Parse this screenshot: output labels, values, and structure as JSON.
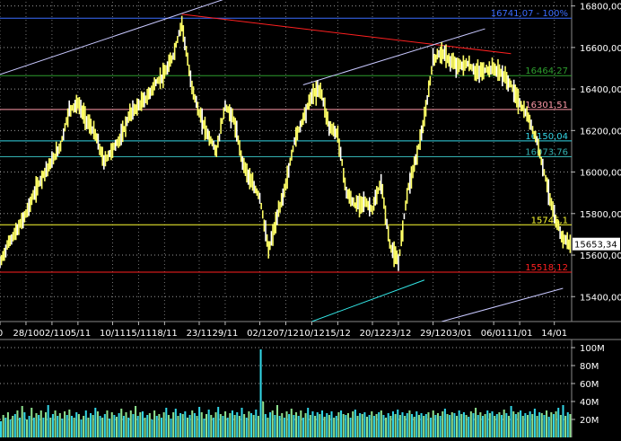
{
  "chart_data": [
    {
      "type": "candlestick",
      "ylim": [
        15280,
        16820
      ],
      "y_ticks": [
        {
          "value": 15400,
          "label": "15400,00"
        },
        {
          "value": 15600,
          "label": "15600,00"
        },
        {
          "value": 15800,
          "label": "15800,00"
        },
        {
          "value": 16000,
          "label": "16000,00"
        },
        {
          "value": 16200,
          "label": "16200,00"
        },
        {
          "value": 16400,
          "label": "16400,00"
        },
        {
          "value": 16600,
          "label": "16600,00"
        },
        {
          "value": 16800,
          "label": "16800,00"
        }
      ],
      "x_range": [
        0,
        66
      ],
      "x_ticks": [
        {
          "index": 0,
          "label": "0"
        },
        {
          "index": 3,
          "label": "28/10"
        },
        {
          "index": 6,
          "label": "02/11"
        },
        {
          "index": 9,
          "label": "05/11"
        },
        {
          "index": 13,
          "label": "10/11"
        },
        {
          "index": 16,
          "label": "15/11"
        },
        {
          "index": 19,
          "label": "18/11"
        },
        {
          "index": 23,
          "label": "23/11"
        },
        {
          "index": 26,
          "label": "29/11"
        },
        {
          "index": 30,
          "label": "02/12"
        },
        {
          "index": 33,
          "label": "07/12"
        },
        {
          "index": 36,
          "label": "10/12"
        },
        {
          "index": 39,
          "label": "15/12"
        },
        {
          "index": 43,
          "label": "20/12"
        },
        {
          "index": 46,
          "label": "23/12"
        },
        {
          "index": 50,
          "label": "29/12"
        },
        {
          "index": 53,
          "label": "03/01"
        },
        {
          "index": 57,
          "label": "06/01"
        },
        {
          "index": 60,
          "label": "11/01"
        },
        {
          "index": 64,
          "label": "14/01"
        }
      ],
      "levels": [
        {
          "value": 16741.07,
          "label": "16741,07 - 100%",
          "color": "#3a6cff"
        },
        {
          "value": 16464.27,
          "label": "16464,27",
          "color": "#2e9e2e"
        },
        {
          "value": 16301.51,
          "label": "16301,51",
          "color": "#ff9aa8"
        },
        {
          "value": 16150.04,
          "label": "16150,04",
          "color": "#33d6e6"
        },
        {
          "value": 16073.76,
          "label": "16073,76",
          "color": "#33b0b0"
        },
        {
          "value": 15746.1,
          "label": "15746,1",
          "color": "#ffff33"
        },
        {
          "value": 15518.12,
          "label": "15518,12",
          "color": "#ff2020"
        }
      ],
      "last_price": {
        "value": 15653.34,
        "label": "15653,34"
      },
      "trendlines": [
        {
          "x1": 0,
          "y1": 16470,
          "x2": 30,
          "y2": 16890,
          "color": "#c8c8ff"
        },
        {
          "x1": 21,
          "y1": 16760,
          "x2": 59,
          "y2": 16570,
          "color": "#ff2020"
        },
        {
          "x1": 35,
          "y1": 16420,
          "x2": 56,
          "y2": 16690,
          "color": "#c8c8ff"
        },
        {
          "x1": 36,
          "y1": 15280,
          "x2": 49,
          "y2": 15480,
          "color": "#33e6e6"
        },
        {
          "x1": 51,
          "y1": 15280,
          "x2": 65,
          "y2": 15440,
          "color": "#c8c8ff"
        }
      ],
      "price_series": [
        15560,
        15660,
        15720,
        15800,
        15900,
        15990,
        16050,
        16130,
        16300,
        16330,
        16250,
        16180,
        16050,
        16110,
        16170,
        16280,
        16320,
        16360,
        16430,
        16470,
        16560,
        16720,
        16440,
        16280,
        16180,
        16100,
        16320,
        16250,
        16050,
        15950,
        15880,
        15620,
        15780,
        15940,
        16150,
        16260,
        16370,
        16400,
        16220,
        16180,
        15900,
        15840,
        15860,
        15820,
        15950,
        15650,
        15560,
        15900,
        16060,
        16250,
        16540,
        16580,
        16530,
        16510,
        16520,
        16480,
        16490,
        16500,
        16470,
        16420,
        16330,
        16260,
        16150,
        15970,
        15780,
        15680,
        15650
      ]
    },
    {
      "type": "bar",
      "ylim": [
        0,
        105
      ],
      "y_ticks": [
        {
          "value": 20,
          "label": "20M"
        },
        {
          "value": 40,
          "label": "40M"
        },
        {
          "value": 60,
          "label": "60M"
        },
        {
          "value": 80,
          "label": "80M"
        },
        {
          "value": 100,
          "label": "100M"
        }
      ],
      "colors": [
        "#33d6e6",
        "#8ee08e"
      ],
      "volume_series": [
        18,
        25,
        22,
        28,
        20,
        24,
        26,
        30,
        22,
        35,
        28,
        20,
        24,
        33,
        22,
        27,
        25,
        30,
        22,
        28,
        36,
        22,
        26,
        30,
        24,
        27,
        21,
        29,
        25,
        31,
        24,
        22,
        28,
        26,
        20,
        24,
        30,
        22,
        27,
        25,
        33,
        29,
        24,
        22,
        26,
        30,
        21,
        28,
        25,
        23,
        27,
        32,
        24,
        28,
        22,
        30,
        26,
        35,
        24,
        28,
        29,
        22,
        25,
        27,
        20,
        30,
        24,
        26,
        22,
        28,
        33,
        25,
        21,
        28,
        32,
        24,
        27,
        26,
        29,
        22,
        25,
        30,
        27,
        24,
        34,
        28,
        21,
        26,
        31,
        25,
        22,
        28,
        34,
        26,
        24,
        29,
        22,
        27,
        30,
        25,
        28,
        24,
        33,
        26,
        22,
        29,
        27,
        25,
        31,
        24,
        98,
        40,
        26,
        22,
        28,
        30,
        25,
        36,
        24,
        27,
        22,
        29,
        26,
        32,
        25,
        28,
        24,
        30,
        22,
        27,
        33,
        25,
        29,
        24,
        28,
        26,
        30,
        23,
        27,
        25,
        29,
        22,
        24,
        28,
        30,
        26,
        25,
        27,
        22,
        29,
        31,
        24,
        27,
        26,
        28,
        23,
        25,
        29,
        24,
        26,
        28,
        30,
        25,
        22,
        27,
        24,
        29,
        26,
        31,
        25,
        28,
        24,
        27,
        30,
        26,
        23,
        29,
        25,
        27,
        24,
        26,
        28,
        22,
        30,
        25,
        27,
        24,
        29,
        32,
        26,
        25,
        28,
        27,
        24,
        30,
        26,
        28,
        25,
        23,
        29,
        27,
        33,
        25,
        28,
        24,
        26,
        30,
        27,
        29,
        24,
        26,
        28,
        25,
        31,
        27,
        24,
        35,
        29,
        26,
        28,
        30,
        24,
        27,
        25,
        29,
        26,
        32,
        24,
        28,
        27,
        25,
        30,
        23,
        28,
        26,
        29,
        33,
        25,
        36,
        24,
        28,
        26
      ]
    }
  ]
}
